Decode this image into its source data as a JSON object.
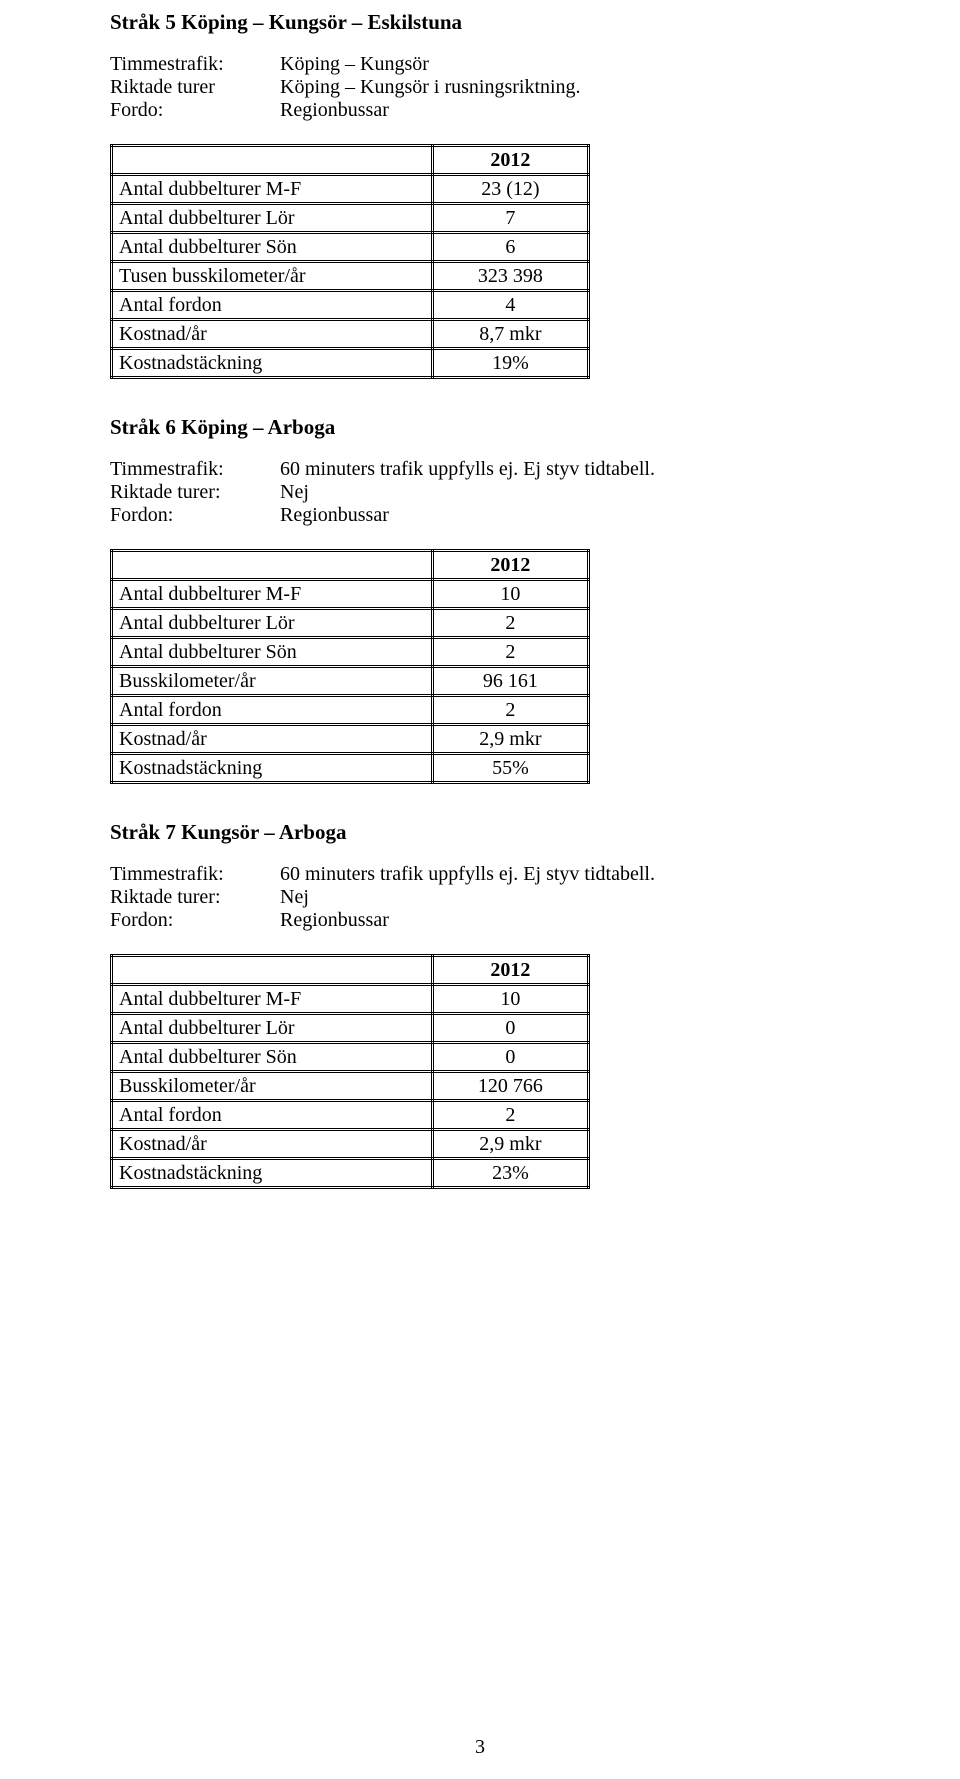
{
  "section5": {
    "heading": "Stråk 5 Köping – Kungsör – Eskilstuna",
    "defs": [
      {
        "label": "Timmestrafik:",
        "value": "Köping – Kungsör"
      },
      {
        "label": "Riktade turer",
        "value": "Köping – Kungsör i rusningsriktning."
      },
      {
        "label": "Fordo:",
        "value": "Regionbussar"
      }
    ],
    "table": {
      "year": "2012",
      "rows": [
        {
          "label": "Antal dubbelturer M-F",
          "value": "23 (12)"
        },
        {
          "label": "Antal dubbelturer Lör",
          "value": "7"
        },
        {
          "label": "Antal dubbelturer Sön",
          "value": "6"
        },
        {
          "label": "Tusen busskilometer/år",
          "value": "323 398"
        },
        {
          "label": "Antal fordon",
          "value": "4"
        },
        {
          "label": "Kostnad/år",
          "value": "8,7 mkr"
        },
        {
          "label": "Kostnadstäckning",
          "value": "19%"
        }
      ]
    }
  },
  "section6": {
    "heading": "Stråk 6 Köping – Arboga",
    "defs": [
      {
        "label": "Timmestrafik:",
        "value": "60 minuters trafik uppfylls ej. Ej styv tidtabell."
      },
      {
        "label": "Riktade turer:",
        "value": "Nej"
      },
      {
        "label": "Fordon:",
        "value": "Regionbussar"
      }
    ],
    "table": {
      "year": "2012",
      "rows": [
        {
          "label": "Antal dubbelturer M-F",
          "value": "10"
        },
        {
          "label": "Antal dubbelturer Lör",
          "value": "2"
        },
        {
          "label": "Antal dubbelturer Sön",
          "value": "2"
        },
        {
          "label": "Busskilometer/år",
          "value": "96 161"
        },
        {
          "label": "Antal fordon",
          "value": "2"
        },
        {
          "label": "Kostnad/år",
          "value": "2,9 mkr"
        },
        {
          "label": "Kostnadstäckning",
          "value": "55%"
        }
      ]
    }
  },
  "section7": {
    "heading": "Stråk 7 Kungsör – Arboga",
    "defs": [
      {
        "label": "Timmestrafik:",
        "value": "60 minuters trafik uppfylls ej. Ej styv tidtabell."
      },
      {
        "label": "Riktade turer:",
        "value": "Nej"
      },
      {
        "label": "Fordon:",
        "value": "Regionbussar"
      }
    ],
    "table": {
      "year": "2012",
      "rows": [
        {
          "label": "Antal dubbelturer M-F",
          "value": "10"
        },
        {
          "label": "Antal dubbelturer Lör",
          "value": "0"
        },
        {
          "label": "Antal dubbelturer Sön",
          "value": "0"
        },
        {
          "label": "Busskilometer/år",
          "value": "120 766"
        },
        {
          "label": "Antal fordon",
          "value": "2"
        },
        {
          "label": "Kostnad/år",
          "value": "2,9 mkr"
        },
        {
          "label": "Kostnadstäckning",
          "value": "23%"
        }
      ]
    }
  },
  "page_number": "3"
}
